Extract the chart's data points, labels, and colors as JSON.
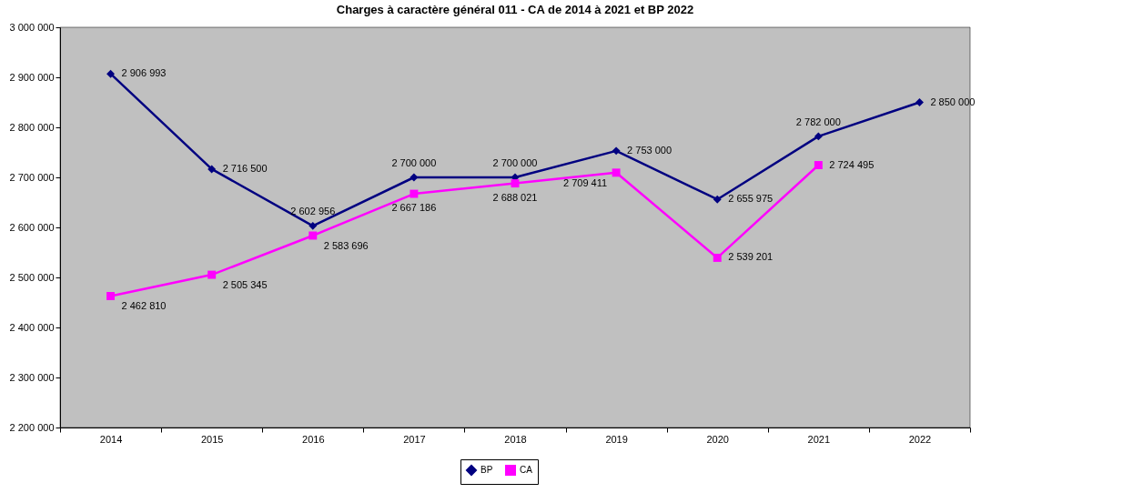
{
  "chart_data": {
    "type": "line",
    "title": "Charges à caractère général 011 - CA de 2014 à 2021 et BP 2022",
    "categories": [
      "2014",
      "2015",
      "2016",
      "2017",
      "2018",
      "2019",
      "2020",
      "2021",
      "2022"
    ],
    "series": [
      {
        "name": "BP",
        "color": "#000080",
        "marker": "diamond",
        "values": [
          2906993,
          2716500,
          2602956,
          2700000,
          2700000,
          2753000,
          2655975,
          2782000,
          2850000
        ],
        "value_labels": [
          "2 906 993",
          "2 716 500",
          "2 602 956",
          "2 700 000",
          "2 700 000",
          "2 753 000",
          "2 655 975",
          "2 782 000",
          "2 850 000"
        ]
      },
      {
        "name": "CA",
        "color": "#ff00ff",
        "marker": "square",
        "values": [
          2462810,
          2505345,
          2583696,
          2667186,
          2688021,
          2709411,
          2539201,
          2724495,
          null
        ],
        "value_labels": [
          "2 462 810",
          "2 505 345",
          "2 583 696",
          "2 667 186",
          "2 688 021",
          "2 709 411",
          "2 539 201",
          "2 724 495",
          null
        ]
      }
    ],
    "ylim": [
      2200000,
      3000000
    ],
    "yticks": [
      {
        "value": 2200000,
        "label": "2 200 000"
      },
      {
        "value": 2300000,
        "label": "2 300 000"
      },
      {
        "value": 2400000,
        "label": "2 400 000"
      },
      {
        "value": 2500000,
        "label": "2 500 000"
      },
      {
        "value": 2600000,
        "label": "2 600 000"
      },
      {
        "value": 2700000,
        "label": "2 700 000"
      },
      {
        "value": 2800000,
        "label": "2 800 000"
      },
      {
        "value": 2900000,
        "label": "2 900 000"
      },
      {
        "value": 3000000,
        "label": "3 000 000"
      }
    ],
    "grid": false,
    "legend": "bottom",
    "line_style": "solid"
  }
}
